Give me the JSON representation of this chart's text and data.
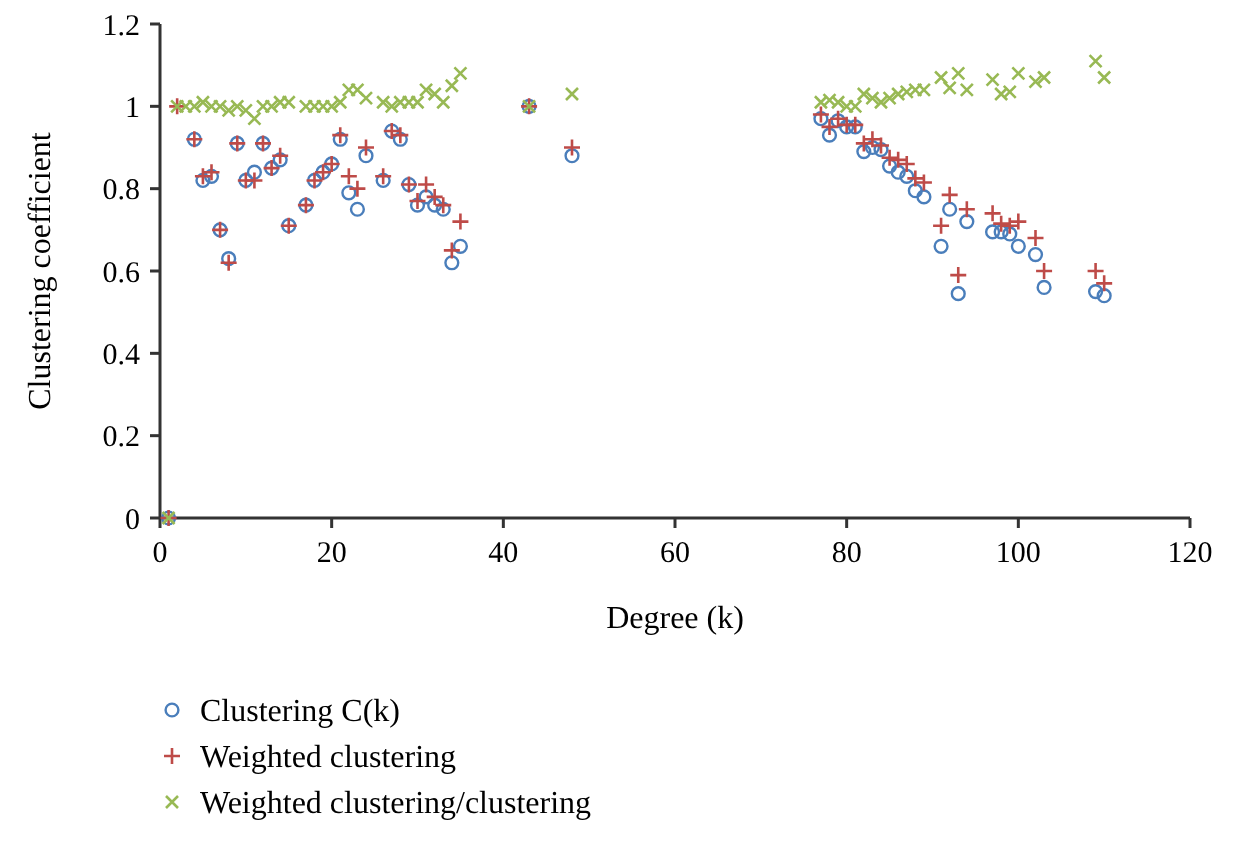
{
  "chart_data": {
    "type": "scatter",
    "xlabel": "Degree (k)",
    "ylabel": "Clustering coefficient",
    "xlim": [
      0,
      120
    ],
    "ylim": [
      0,
      1.2
    ],
    "xticks": [
      0,
      20,
      40,
      60,
      80,
      100,
      120
    ],
    "yticks": [
      0,
      0.2,
      0.4,
      0.6,
      0.8,
      1,
      1.2
    ],
    "grid": false,
    "legend": "bottom",
    "x": [
      1,
      2,
      3,
      4,
      5,
      6,
      7,
      8,
      9,
      10,
      11,
      12,
      13,
      14,
      15,
      17,
      18,
      19,
      20,
      21,
      22,
      23,
      24,
      26,
      27,
      28,
      29,
      30,
      31,
      32,
      33,
      34,
      35,
      43,
      48,
      77,
      78,
      79,
      80,
      81,
      82,
      83,
      84,
      85,
      86,
      87,
      88,
      89,
      91,
      92,
      93,
      94,
      97,
      98,
      99,
      100,
      102,
      103,
      109,
      110
    ],
    "series": [
      {
        "name": "Clustering C(k)",
        "color": "#4a7ebb",
        "marker": "circle",
        "values": [
          0,
          null,
          null,
          0.92,
          0.82,
          0.83,
          0.7,
          0.63,
          0.91,
          0.82,
          0.84,
          0.91,
          0.85,
          0.87,
          0.71,
          0.76,
          0.82,
          0.84,
          0.86,
          0.92,
          0.79,
          0.75,
          0.88,
          0.82,
          0.94,
          0.92,
          0.81,
          0.76,
          0.78,
          0.76,
          0.75,
          0.62,
          0.66,
          1,
          0.88,
          0.97,
          0.93,
          0.965,
          0.95,
          0.95,
          0.89,
          0.9,
          0.895,
          0.855,
          0.84,
          0.83,
          0.795,
          0.78,
          0.66,
          0.75,
          0.545,
          0.72,
          0.695,
          0.695,
          0.69,
          0.66,
          0.64,
          0.56,
          0.55,
          0.54
        ]
      },
      {
        "name": "Weighted clustering",
        "color": "#be4b48",
        "marker": "plus",
        "values": [
          0,
          1,
          null,
          0.92,
          0.83,
          0.84,
          0.7,
          0.62,
          0.91,
          0.82,
          0.82,
          0.91,
          0.85,
          0.88,
          0.71,
          0.76,
          0.82,
          0.84,
          0.86,
          0.93,
          0.83,
          0.8,
          0.9,
          0.83,
          0.94,
          0.93,
          0.81,
          0.77,
          0.81,
          0.78,
          0.76,
          0.65,
          0.72,
          1,
          0.9,
          0.98,
          0.95,
          0.97,
          0.955,
          0.955,
          0.91,
          0.92,
          0.905,
          0.875,
          0.87,
          0.86,
          0.825,
          0.815,
          0.71,
          0.785,
          0.59,
          0.75,
          0.74,
          0.715,
          0.71,
          0.72,
          0.68,
          0.6,
          0.6,
          0.57
        ]
      },
      {
        "name": "Weighted clustering/clustering",
        "color": "#98b954",
        "marker": "cross",
        "values": [
          0,
          1,
          1,
          1,
          1.01,
          1,
          1,
          0.99,
          1,
          0.99,
          0.97,
          1,
          1,
          1.01,
          1.01,
          1,
          1,
          1,
          1,
          1.01,
          1.04,
          1.04,
          1.02,
          1.01,
          1,
          1.01,
          1.01,
          1.01,
          1.04,
          1.03,
          1.01,
          1.05,
          1.08,
          1,
          1.03,
          1.01,
          1.015,
          1.01,
          1,
          1,
          1.03,
          1.02,
          1.01,
          1.02,
          1.03,
          1.035,
          1.04,
          1.04,
          1.07,
          1.045,
          1.08,
          1.04,
          1.065,
          1.03,
          1.035,
          1.08,
          1.06,
          1.07,
          1.11,
          1.07
        ]
      }
    ]
  }
}
